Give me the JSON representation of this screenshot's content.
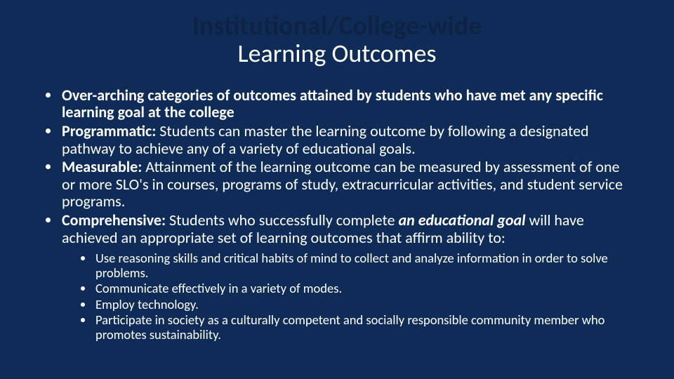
{
  "colors": {
    "background": "#0f2b57",
    "title_line1": "#0e2344",
    "title_line2": "#ffffff",
    "body_text": "#ffffff"
  },
  "typography": {
    "title_line1_fontsize": 38,
    "title_line1_weight": 600,
    "title_line2_fontsize": 36,
    "title_line2_weight": 400,
    "bullet_fontsize": 22,
    "subbullet_fontsize": 18.5,
    "family": "Calibri"
  },
  "title": {
    "line1": "Institutional/College-wide",
    "line2": "Learning Outcomes"
  },
  "bullets": {
    "b1_bold": "Over-arching categories of outcomes attained by students who have met any specific learning goal at the college",
    "b2_boldlabel": "Programmatic:",
    "b2_rest": " Students can master the learning outcome by following a designated pathway to achieve any of a variety of educational goals.",
    "b3_boldlabel": "Measurable:",
    "b3_rest": " Attainment of the learning outcome can be measured by assessment of one or more SLO's in courses, programs of study, extracurricular activities, and student service programs.",
    "b4_boldlabel": "Comprehensive:",
    "b4_mid": " Students who successfully complete ",
    "b4_emph": "an educational goal",
    "b4_tail": " will have achieved an appropriate set of learning outcomes that affirm ability to:"
  },
  "subbullets": {
    "s1": "Use reasoning skills and critical habits of mind to collect and analyze information in order to solve problems.",
    "s2": "Communicate effectively in a variety of modes.",
    "s3": "Employ technology.",
    "s4": "Participate in society as a culturally competent and socially responsible community member who promotes sustainability."
  }
}
